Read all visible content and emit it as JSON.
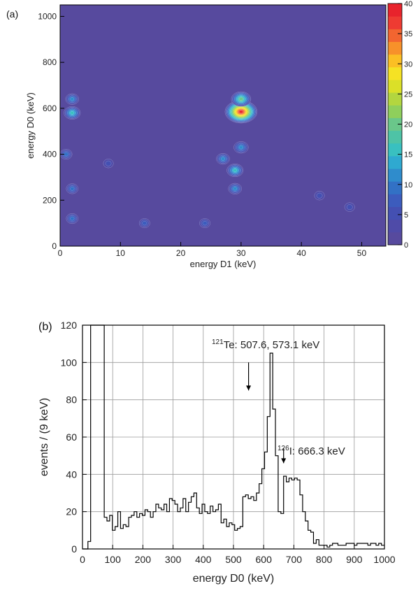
{
  "chart_data": [
    {
      "panel_label": "(a)",
      "type": "heatmap",
      "xlabel": "energy D1 (keV)",
      "ylabel": "energy D0 (keV)",
      "xlim": [
        0,
        54
      ],
      "ylim": [
        0,
        1050
      ],
      "x_ticks": [
        0,
        10,
        20,
        30,
        40,
        50
      ],
      "y_ticks": [
        0,
        200,
        400,
        600,
        800,
        1000
      ],
      "colorbar": {
        "range": [
          0,
          40
        ],
        "ticks": [
          0,
          5,
          10,
          15,
          20,
          25,
          30,
          35,
          40
        ],
        "colors": [
          "#574a9e",
          "#4f4ba8",
          "#4450b2",
          "#3c5cbd",
          "#3271c5",
          "#2f8ccc",
          "#2fa9d0",
          "#39c0c0",
          "#4ec3a6",
          "#6ac78a",
          "#8fcf5c",
          "#b3d63f",
          "#dbe028",
          "#f5e224",
          "#fbbf24",
          "#f7912a",
          "#f26530",
          "#ee3b32",
          "#e8232c"
        ]
      },
      "hotspots": [
        {
          "x": 30,
          "y": 585,
          "value": 40,
          "note": "peak"
        },
        {
          "x": 30,
          "y": 640,
          "value": 20
        },
        {
          "x": 29,
          "y": 330,
          "value": 15
        },
        {
          "x": 29,
          "y": 250,
          "value": 10
        },
        {
          "x": 30,
          "y": 430,
          "value": 12
        },
        {
          "x": 2,
          "y": 580,
          "value": 15
        },
        {
          "x": 2,
          "y": 640,
          "value": 10
        },
        {
          "x": 1,
          "y": 400,
          "value": 8
        },
        {
          "x": 2,
          "y": 250,
          "value": 8
        },
        {
          "x": 2,
          "y": 120,
          "value": 8
        },
        {
          "x": 27,
          "y": 380,
          "value": 10
        },
        {
          "x": 14,
          "y": 100,
          "value": 6
        },
        {
          "x": 8,
          "y": 360,
          "value": 5
        },
        {
          "x": 24,
          "y": 100,
          "value": 6
        },
        {
          "x": 43,
          "y": 220,
          "value": 5
        },
        {
          "x": 48,
          "y": 170,
          "value": 5
        }
      ]
    },
    {
      "panel_label": "(b)",
      "type": "line",
      "subtype": "step histogram",
      "xlabel": "energy D0 (keV)",
      "ylabel": "events / (9 keV)",
      "xlim": [
        0,
        1000
      ],
      "ylim": [
        0,
        120
      ],
      "x_ticks": [
        0,
        100,
        200,
        300,
        400,
        500,
        600,
        700,
        800,
        900,
        1000
      ],
      "y_ticks": [
        0,
        20,
        40,
        60,
        80,
        100,
        120
      ],
      "grid": true,
      "bin_width": 9,
      "bins_start": 18,
      "values": [
        4,
        150,
        150,
        150,
        150,
        150,
        17,
        15,
        18,
        10,
        12,
        20,
        11,
        13,
        12,
        17,
        18,
        20,
        17,
        19,
        18,
        21,
        20,
        17,
        20,
        24,
        22,
        21,
        24,
        20,
        27,
        26,
        24,
        20,
        22,
        27,
        20,
        25,
        28,
        30,
        22,
        19,
        24,
        20,
        19,
        23,
        20,
        21,
        24,
        14,
        16,
        12,
        14,
        13,
        10,
        11,
        12,
        28,
        29,
        27,
        28,
        26,
        30,
        35,
        43,
        52,
        71,
        105,
        75,
        50,
        20,
        19,
        39,
        36,
        38,
        37,
        38,
        37,
        29,
        20,
        15,
        10,
        9,
        3,
        5,
        2,
        2,
        2,
        1,
        2,
        3,
        3,
        2,
        2,
        2,
        3,
        3,
        3,
        2,
        3,
        3,
        3,
        3,
        2,
        3,
        3,
        2,
        3,
        2,
        2,
        3,
        2,
        4,
        2,
        1
      ],
      "annotations": [
        {
          "sup": "121",
          "text": "Te: 507.6, 573.1 keV",
          "arrow_x": 550,
          "arrow_y_from": 100,
          "arrow_y_to": 85
        },
        {
          "sup": "126",
          "text": "I: 666.3 keV",
          "arrow_x": 666,
          "arrow_y_from": 54,
          "arrow_y_to": 46
        }
      ]
    }
  ]
}
